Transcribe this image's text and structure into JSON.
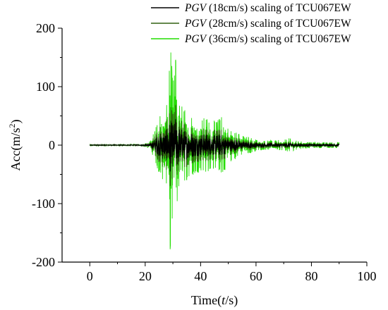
{
  "chart_data": {
    "type": "line",
    "title": "",
    "xlabel": {
      "prefix": "Time(",
      "italic": "t",
      "suffix": "/s)"
    },
    "ylabel": {
      "prefix": "Acc(m/s",
      "sup": "2",
      "suffix": ")"
    },
    "xlim": [
      -10,
      100
    ],
    "ylim": [
      -200,
      200
    ],
    "xticks": [
      0,
      20,
      40,
      60,
      80,
      100
    ],
    "yticks": [
      -200,
      -100,
      0,
      100,
      200
    ],
    "xtick_labels": [
      "0",
      "20",
      "40",
      "60",
      "80",
      "100"
    ],
    "ytick_labels": [
      "-200",
      "-100",
      "0",
      "100",
      "200"
    ],
    "grid": false,
    "legend_position": "top-right",
    "series": [
      {
        "name": {
          "italic": "PGV",
          "text": " (18cm/s)  scaling of TCU067EW"
        },
        "color": "#000000",
        "envelope": [
          [
            0,
            0.5
          ],
          [
            18,
            0.5
          ],
          [
            20,
            1
          ],
          [
            22,
            3
          ],
          [
            24,
            14
          ],
          [
            26,
            24
          ],
          [
            28,
            28
          ],
          [
            29,
            45
          ],
          [
            30,
            35
          ],
          [
            31,
            44
          ],
          [
            32,
            32
          ],
          [
            34,
            26
          ],
          [
            36,
            22
          ],
          [
            38,
            20
          ],
          [
            40,
            18
          ],
          [
            42,
            20
          ],
          [
            44,
            16
          ],
          [
            46,
            18
          ],
          [
            48,
            18
          ],
          [
            50,
            12
          ],
          [
            52,
            10
          ],
          [
            54,
            8
          ],
          [
            56,
            5
          ],
          [
            58,
            5
          ],
          [
            60,
            4
          ],
          [
            62,
            3
          ],
          [
            66,
            3
          ],
          [
            70,
            3
          ],
          [
            72,
            4
          ],
          [
            75,
            3
          ],
          [
            80,
            2
          ],
          [
            85,
            2
          ],
          [
            90,
            2
          ]
        ]
      },
      {
        "name": {
          "italic": "PGV",
          "text": " (28cm/s)  scaling of TCU067EW"
        },
        "color": "#306010",
        "envelope": [
          [
            0,
            0.8
          ],
          [
            18,
            0.8
          ],
          [
            20,
            2
          ],
          [
            22,
            5
          ],
          [
            24,
            22
          ],
          [
            26,
            38
          ],
          [
            28,
            45
          ],
          [
            29,
            70
          ],
          [
            30,
            55
          ],
          [
            31,
            68
          ],
          [
            32,
            50
          ],
          [
            34,
            40
          ],
          [
            36,
            35
          ],
          [
            38,
            30
          ],
          [
            40,
            28
          ],
          [
            42,
            30
          ],
          [
            44,
            25
          ],
          [
            46,
            28
          ],
          [
            48,
            28
          ],
          [
            50,
            18
          ],
          [
            52,
            15
          ],
          [
            54,
            12
          ],
          [
            56,
            8
          ],
          [
            58,
            8
          ],
          [
            60,
            6
          ],
          [
            62,
            5
          ],
          [
            66,
            5
          ],
          [
            70,
            5
          ],
          [
            72,
            6
          ],
          [
            75,
            4
          ],
          [
            80,
            3
          ],
          [
            85,
            3
          ],
          [
            90,
            3
          ]
        ]
      },
      {
        "name": {
          "italic": "PGV",
          "text": " (36cm/s)  scaling of TCU067EW"
        },
        "color": "#22dd00",
        "envelope": [
          [
            0,
            1
          ],
          [
            18,
            1
          ],
          [
            20,
            3
          ],
          [
            22,
            8
          ],
          [
            24,
            35
          ],
          [
            26,
            60
          ],
          [
            28,
            70
          ],
          [
            29,
            178
          ],
          [
            30,
            112
          ],
          [
            31,
            146
          ],
          [
            32,
            80
          ],
          [
            34,
            65
          ],
          [
            36,
            55
          ],
          [
            38,
            50
          ],
          [
            40,
            45
          ],
          [
            42,
            50
          ],
          [
            44,
            40
          ],
          [
            46,
            45
          ],
          [
            48,
            52
          ],
          [
            50,
            30
          ],
          [
            52,
            25
          ],
          [
            54,
            20
          ],
          [
            56,
            15
          ],
          [
            58,
            14
          ],
          [
            60,
            10
          ],
          [
            62,
            8
          ],
          [
            66,
            8
          ],
          [
            70,
            9
          ],
          [
            72,
            12
          ],
          [
            75,
            7
          ],
          [
            80,
            5
          ],
          [
            85,
            5
          ],
          [
            90,
            5
          ]
        ]
      }
    ],
    "t_end": 90
  }
}
